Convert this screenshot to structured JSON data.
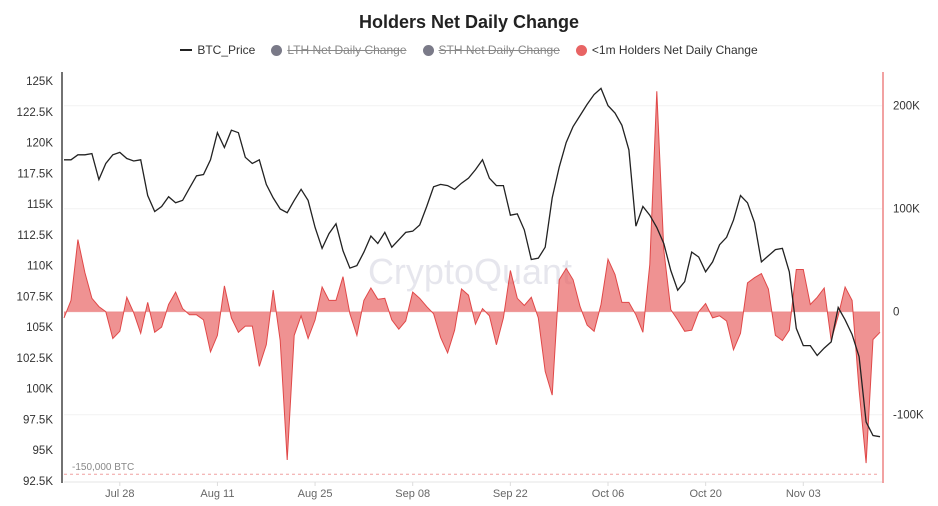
{
  "chart_data": {
    "type": "line+area",
    "title": "Holders Net Daily Change",
    "legend": [
      {
        "name": "BTC_Price",
        "color": "#222222",
        "marker": "line",
        "active": true
      },
      {
        "name": "LTH Net Daily Change",
        "color": "#7a7a88",
        "marker": "dot",
        "active": false
      },
      {
        "name": "STH Net Daily Change",
        "color": "#7a7a88",
        "marker": "dot",
        "active": false
      },
      {
        "name": "<1m Holders Net Daily Change",
        "color": "#e86464",
        "marker": "dot",
        "active": true
      }
    ],
    "legend_position": "top",
    "watermark": "CryptoQuant",
    "x": [
      "Jul 20",
      "Jul 21",
      "Jul 22",
      "Jul 23",
      "Jul 24",
      "Jul 25",
      "Jul 26",
      "Jul 27",
      "Jul 28",
      "Jul 29",
      "Jul 30",
      "Jul 31",
      "Aug 01",
      "Aug 02",
      "Aug 03",
      "Aug 04",
      "Aug 05",
      "Aug 06",
      "Aug 07",
      "Aug 08",
      "Aug 09",
      "Aug 10",
      "Aug 11",
      "Aug 12",
      "Aug 13",
      "Aug 14",
      "Aug 15",
      "Aug 16",
      "Aug 17",
      "Aug 18",
      "Aug 19",
      "Aug 20",
      "Aug 21",
      "Aug 22",
      "Aug 23",
      "Aug 24",
      "Aug 25",
      "Aug 26",
      "Aug 27",
      "Aug 28",
      "Aug 29",
      "Aug 30",
      "Aug 31",
      "Sep 01",
      "Sep 02",
      "Sep 03",
      "Sep 04",
      "Sep 05",
      "Sep 06",
      "Sep 07",
      "Sep 08",
      "Sep 09",
      "Sep 10",
      "Sep 11",
      "Sep 12",
      "Sep 13",
      "Sep 14",
      "Sep 15",
      "Sep 16",
      "Sep 17",
      "Sep 18",
      "Sep 19",
      "Sep 20",
      "Sep 21",
      "Sep 22",
      "Sep 23",
      "Sep 24",
      "Sep 25",
      "Sep 26",
      "Sep 27",
      "Sep 28",
      "Sep 29",
      "Sep 30",
      "Oct 01",
      "Oct 02",
      "Oct 03",
      "Oct 04",
      "Oct 05",
      "Oct 06",
      "Oct 07",
      "Oct 08",
      "Oct 09",
      "Oct 10",
      "Oct 11",
      "Oct 12",
      "Oct 13",
      "Oct 14",
      "Oct 15",
      "Oct 16",
      "Oct 17",
      "Oct 18",
      "Oct 19",
      "Oct 20",
      "Oct 21",
      "Oct 22",
      "Oct 23",
      "Oct 24",
      "Oct 25",
      "Oct 26",
      "Oct 27",
      "Oct 28",
      "Oct 29",
      "Oct 30",
      "Oct 31",
      "Nov 01",
      "Nov 02",
      "Nov 03",
      "Nov 04",
      "Nov 05",
      "Nov 06",
      "Nov 07",
      "Nov 08",
      "Nov 09",
      "Nov 10",
      "Nov 11",
      "Nov 12",
      "Nov 13",
      "Nov 14"
    ],
    "x_ticks": [
      "Jul 28",
      "Aug 11",
      "Aug 25",
      "Sep 08",
      "Sep 22",
      "Oct 06",
      "Oct 20",
      "Nov 03"
    ],
    "y_left": {
      "min": 92500,
      "max": 125000,
      "ticks": [
        92500,
        95000,
        97500,
        100000,
        102500,
        105000,
        107500,
        110000,
        112500,
        115000,
        117500,
        120000,
        122500,
        125000
      ],
      "tick_labels": [
        "92.5K",
        "95K",
        "97.5K",
        "100K",
        "102.5K",
        "105K",
        "107.5K",
        "110K",
        "112.5K",
        "115K",
        "117.5K",
        "120K",
        "122.5K",
        "125K"
      ]
    },
    "y_right": {
      "min": -150000,
      "max": 230000,
      "ticks": [
        -100000,
        0,
        100000,
        200000
      ],
      "tick_labels": [
        "-100K",
        "0",
        "100K",
        "200K"
      ],
      "color": "#e86464"
    },
    "grid": true,
    "reference_line": {
      "value": -150000,
      "label": "-150,000 BTC",
      "style": "dashed",
      "color": "#f0a0a0"
    },
    "series": [
      {
        "name": "BTC_Price",
        "axis": "left",
        "type": "line",
        "color": "#222222",
        "values": [
          118600,
          118600,
          119000,
          119000,
          119100,
          117000,
          118300,
          119000,
          119200,
          118700,
          118500,
          118600,
          115700,
          114400,
          114800,
          115600,
          115100,
          115300,
          116300,
          117300,
          117400,
          118600,
          120800,
          119600,
          121000,
          120800,
          118800,
          118300,
          118600,
          116600,
          115500,
          114600,
          114300,
          115300,
          116200,
          115300,
          113100,
          111400,
          112600,
          113400,
          111200,
          109800,
          110000,
          111100,
          112400,
          111800,
          112700,
          111500,
          112100,
          112700,
          112800,
          113300,
          114800,
          116400,
          116600,
          116500,
          116200,
          116700,
          117100,
          117800,
          118600,
          117100,
          116500,
          116500,
          114100,
          114200,
          112900,
          110500,
          110600,
          111500,
          115500,
          118000,
          120000,
          121300,
          122200,
          123100,
          123900,
          124400,
          123000,
          122400,
          121400,
          119400,
          113200,
          114800,
          114100,
          113100,
          111800,
          109600,
          108000,
          108700,
          111100,
          110700,
          109500,
          110300,
          111700,
          112300,
          113700,
          115700,
          115100,
          113500,
          110300,
          110800,
          111300,
          111400,
          109500,
          104900,
          103500,
          103500,
          102700,
          103300,
          103800,
          106600,
          105600,
          104400,
          102600,
          97300,
          96200,
          96100
        ]
      },
      {
        "name": "<1m Holders Net Daily Change",
        "axis": "right",
        "type": "area",
        "color": "#e86464",
        "values": [
          -6000,
          11000,
          70000,
          38000,
          13000,
          5000,
          0,
          -26000,
          -19000,
          14000,
          -1000,
          -21000,
          9000,
          -20000,
          -15000,
          7000,
          19000,
          3000,
          -3000,
          -3000,
          -8000,
          -39000,
          -23000,
          25000,
          -6000,
          -20000,
          -14000,
          -14000,
          -53000,
          -32000,
          21000,
          -28000,
          -144000,
          -23000,
          -4000,
          -26000,
          -8000,
          24000,
          11000,
          11000,
          34000,
          -2000,
          -23000,
          11000,
          23000,
          12000,
          13000,
          -8000,
          -17000,
          -9000,
          19000,
          13000,
          5000,
          -2000,
          -25000,
          -40000,
          -18000,
          22000,
          16000,
          -12000,
          3000,
          -4000,
          -32000,
          -6000,
          40000,
          13000,
          6000,
          14000,
          -6000,
          -58000,
          -81000,
          31000,
          42000,
          31000,
          5000,
          -13000,
          -19000,
          7000,
          51000,
          36000,
          9000,
          9000,
          -3000,
          -20000,
          46000,
          214000,
          60000,
          2000,
          -8000,
          -19000,
          -18000,
          0,
          8000,
          -6000,
          -4000,
          -9000,
          -37000,
          -21000,
          28000,
          33000,
          37000,
          22000,
          -23000,
          -28000,
          -18000,
          41000,
          41000,
          7000,
          14000,
          23000,
          -28000,
          -4000,
          24000,
          11000,
          -76000,
          -147000,
          -27000,
          -20000
        ]
      }
    ]
  }
}
